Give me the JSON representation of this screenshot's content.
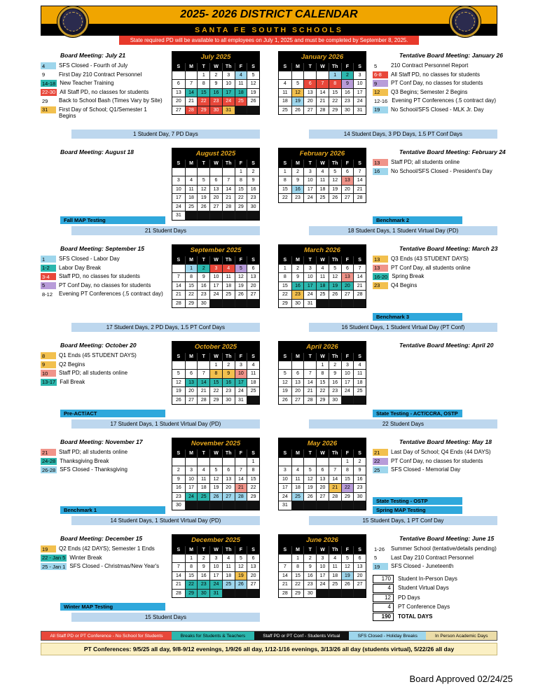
{
  "header": {
    "title": "2025- 2026 DISTRICT CALENDAR",
    "school": "SANTA FE SOUTH SCHOOLS",
    "notice": "State required PD will be available to all employees on July 1, 2025 and must be completed by September 8, 2025."
  },
  "day_headers": [
    "S",
    "M",
    "T",
    "W",
    "Th",
    "F",
    "S"
  ],
  "colors": {
    "gold": "#F0A500",
    "red": "#E8473A",
    "teal": "#2CB7AE",
    "blue": "#9ED6EC",
    "yellow": "#F2C04E",
    "pink": "#F0948A",
    "purple": "#B89CD9",
    "testing": "#2FA8DC",
    "summary": "#BDD7EE",
    "blackkey": "#121212",
    "tan": "#EBDCA8"
  },
  "months": [
    {
      "name": "July 2025",
      "board_meeting": "Board Meeting: July 21",
      "first_dow": 2,
      "num_days": 31,
      "events": [
        {
          "badge": "4",
          "color": "blue",
          "text": "SFS Closed - Fourth of July"
        },
        {
          "badge": "9",
          "color": "none",
          "text": "First Day 210 Contract Personnel"
        },
        {
          "badge": "14-18",
          "color": "teal",
          "text": "New Teacher Training"
        },
        {
          "badge": "22-30",
          "color": "red",
          "text": "All Staff PD, no classes for students"
        },
        {
          "badge": "29",
          "color": "none",
          "text": "Back to School Bash (Times Vary by Site)"
        },
        {
          "badge": "31",
          "color": "yellow",
          "text": "First Day of School; Q1/Semester 1 Begins"
        }
      ],
      "highlights": [
        {
          "color": "blue",
          "days": [
            4
          ]
        },
        {
          "color": "teal",
          "days": [
            14,
            15,
            16,
            17,
            18
          ]
        },
        {
          "color": "red",
          "days": [
            22,
            23,
            24,
            25,
            28,
            29,
            30
          ]
        },
        {
          "color": "yellow",
          "days": [
            31
          ]
        }
      ],
      "bars": [],
      "summary": "1 Student Day, 7 PD Days"
    },
    {
      "name": "August 2025",
      "board_meeting": "Board Meeting: August 18",
      "first_dow": 5,
      "num_days": 31,
      "events": [],
      "highlights": [],
      "bars": [
        "Fall MAP Testing"
      ],
      "summary": "21 Student Days"
    },
    {
      "name": "September 2025",
      "board_meeting": "Board Meeting: September 15",
      "first_dow": 1,
      "num_days": 30,
      "events": [
        {
          "badge": "1",
          "color": "blue",
          "text": "SFS Closed - Labor Day"
        },
        {
          "badge": "1-2",
          "color": "teal",
          "text": "Labor Day Break"
        },
        {
          "badge": "3-4",
          "color": "red",
          "text": "Staff PD, no classes for students"
        },
        {
          "badge": "5",
          "color": "purple",
          "text": "PT Conf Day, no classes for students"
        },
        {
          "badge": "8-12",
          "color": "none",
          "text": "Evening PT Conferences  (.5 contract day)"
        }
      ],
      "highlights": [
        {
          "color": "blue",
          "days": [
            1
          ]
        },
        {
          "color": "teal",
          "days": [
            2
          ]
        },
        {
          "color": "red",
          "days": [
            3,
            4
          ]
        },
        {
          "color": "purple",
          "days": [
            5
          ]
        }
      ],
      "bars": [],
      "summary": "17 Student Days, 2 PD Days, 1.5 PT Conf Days"
    },
    {
      "name": "October 2025",
      "board_meeting": "Board Meeting: October 20",
      "first_dow": 3,
      "num_days": 31,
      "events": [
        {
          "badge": "8",
          "color": "yellow",
          "text": "Q1 Ends (45 STUDENT DAYS)"
        },
        {
          "badge": "9",
          "color": "yellow",
          "text": "Q2 Begins"
        },
        {
          "badge": "10",
          "color": "pink",
          "text": "Staff PD; all students online"
        },
        {
          "badge": "13-17",
          "color": "teal",
          "text": "Fall Break"
        }
      ],
      "highlights": [
        {
          "color": "yellow",
          "days": [
            8,
            9
          ]
        },
        {
          "color": "pink",
          "days": [
            10
          ]
        },
        {
          "color": "teal",
          "days": [
            13,
            14,
            15,
            16,
            17
          ]
        }
      ],
      "bars": [
        "Pre-ACT/ACT"
      ],
      "summary": "17 Student Days, 1 Student Virtual Day (PD)"
    },
    {
      "name": "November 2025",
      "board_meeting": "Board Meeting: November 17",
      "first_dow": 6,
      "num_days": 30,
      "events": [
        {
          "badge": "21",
          "color": "pink",
          "text": "Staff PD; all students online"
        },
        {
          "badge": "24-28",
          "color": "teal",
          "text": "Thanksgiving Break"
        },
        {
          "badge": "26-28",
          "color": "blue",
          "text": "SFS Closed - Thanksgiving"
        }
      ],
      "highlights": [
        {
          "color": "pink",
          "days": [
            21
          ]
        },
        {
          "color": "teal",
          "days": [
            24,
            25
          ]
        },
        {
          "color": "blue",
          "days": [
            26,
            27,
            28
          ]
        }
      ],
      "bars": [
        "Benchmark 1"
      ],
      "summary": "14 Student Days, 1 Student Virtual Day (PD)"
    },
    {
      "name": "December 2025",
      "board_meeting": "Board Meeting: December 15",
      "first_dow": 1,
      "num_days": 31,
      "events": [
        {
          "badge": "19",
          "color": "yellow",
          "text": "Q2 Ends (42 DAYS); Semester 1 Ends"
        },
        {
          "badge": "22 - Jan 5",
          "color": "teal",
          "text": "Winter Break"
        },
        {
          "badge": "25 - Jan 1",
          "color": "blue",
          "text": "SFS Closed - Christmas/New Year's"
        }
      ],
      "highlights": [
        {
          "color": "yellow",
          "days": [
            19
          ]
        },
        {
          "color": "teal",
          "days": [
            22,
            23,
            24,
            29,
            30,
            31
          ]
        },
        {
          "color": "blue",
          "days": [
            25,
            26
          ]
        }
      ],
      "bars": [
        "Winter MAP Testing"
      ],
      "summary": "15 Student Days"
    },
    {
      "name": "January 2026",
      "board_meeting": "Tentative Board Meeting: January 26",
      "first_dow": 4,
      "num_days": 31,
      "events": [
        {
          "badge": "5",
          "color": "none",
          "text": "210 Contract Personnel Report"
        },
        {
          "badge": "6-8",
          "color": "red",
          "text": "All Staff PD, no classes for students"
        },
        {
          "badge": "9",
          "color": "purple",
          "text": "PT Conf Day, no classes for students"
        },
        {
          "badge": "12",
          "color": "yellow",
          "text": "Q3 Begins; Semester 2 Begins"
        },
        {
          "badge": "12-16",
          "color": "none",
          "text": "Evening PT Conferences  (.5 contract day)"
        },
        {
          "badge": "19",
          "color": "blue",
          "text": "No School/SFS Closed - MLK Jr. Day"
        }
      ],
      "highlights": [
        {
          "color": "blue",
          "days": [
            1,
            19
          ]
        },
        {
          "color": "teal",
          "days": [
            2
          ]
        },
        {
          "color": "red",
          "days": [
            6,
            7,
            8
          ]
        },
        {
          "color": "purple",
          "days": [
            9
          ]
        },
        {
          "color": "yellow",
          "days": [
            12
          ]
        }
      ],
      "bars": [],
      "summary": "14 Student Days, 3 PD Days, 1.5 PT Conf Days"
    },
    {
      "name": "February 2026",
      "board_meeting": "Tentative Board Meeting: February 24",
      "first_dow": 0,
      "num_days": 28,
      "events": [
        {
          "badge": "13",
          "color": "pink",
          "text": "Staff PD; all students online"
        },
        {
          "badge": "16",
          "color": "blue",
          "text": "No School/SFS Closed - President's Day"
        }
      ],
      "highlights": [
        {
          "color": "pink",
          "days": [
            13
          ]
        },
        {
          "color": "blue",
          "days": [
            16
          ]
        }
      ],
      "bars": [
        "Benchmark 2"
      ],
      "summary": "18 Student Days, 1 Student Virtual Day (PD)"
    },
    {
      "name": "March 2026",
      "board_meeting": "Tentative Board Meeting: March 23",
      "first_dow": 0,
      "num_days": 31,
      "events": [
        {
          "badge": "13",
          "color": "yellow",
          "text": "Q3 Ends (43 STUDENT DAYS)"
        },
        {
          "badge": "13",
          "color": "pink",
          "text": "PT Conf Day, all students online"
        },
        {
          "badge": "16-20",
          "color": "teal",
          "text": "Spring Break"
        },
        {
          "badge": "23",
          "color": "yellow",
          "text": "Q4 Begins"
        }
      ],
      "highlights": [
        {
          "color": "pink",
          "days": [
            13
          ]
        },
        {
          "color": "teal",
          "days": [
            16,
            17,
            18,
            19,
            20
          ]
        },
        {
          "color": "yellow",
          "days": [
            23
          ]
        }
      ],
      "bars": [
        "Benchmark 3"
      ],
      "summary": "16 Student Days, 1 Student Virtual Day (PT Conf)"
    },
    {
      "name": "April 2026",
      "board_meeting": "Tentative Board Meeting: April 20",
      "first_dow": 3,
      "num_days": 30,
      "events": [],
      "highlights": [],
      "bars": [
        "State Testing - ACT/CCRA, OSTP"
      ],
      "summary": "22 Student Days"
    },
    {
      "name": "May 2026",
      "board_meeting": "Tentative Board Meeting: May 18",
      "first_dow": 5,
      "num_days": 31,
      "events": [
        {
          "badge": "21",
          "color": "yellow",
          "text": "Last Day of School; Q4 Ends (44 DAYS)"
        },
        {
          "badge": "22",
          "color": "purple",
          "text": "PT Conf Day, no classes for students"
        },
        {
          "badge": "25",
          "color": "blue",
          "text": "SFS Closed - Memorial Day"
        }
      ],
      "highlights": [
        {
          "color": "yellow",
          "days": [
            21
          ]
        },
        {
          "color": "purple",
          "days": [
            22
          ]
        },
        {
          "color": "blue",
          "days": [
            25
          ]
        }
      ],
      "bars": [
        "State Testing - OSTP",
        "Spring MAP Testing"
      ],
      "summary": "15 Student Days, 1 PT Conf Day"
    },
    {
      "name": "June 2026",
      "board_meeting": "Tentative Board Meeting: June 15",
      "first_dow": 1,
      "num_days": 30,
      "events": [
        {
          "badge": "1-26",
          "color": "none",
          "text": "Summer School (tentative/details pending)"
        },
        {
          "badge": "5",
          "color": "none",
          "text": "Last Day 210 Contract Personnel"
        },
        {
          "badge": "19",
          "color": "blue",
          "text": "SFS Closed - Juneteenth"
        }
      ],
      "highlights": [
        {
          "color": "blue",
          "days": [
            19
          ]
        }
      ],
      "bars": [],
      "totals": [
        {
          "num": "170",
          "label": "Student In-Person Days"
        },
        {
          "num": "4",
          "label": "Student Virtual Days"
        },
        {
          "num": "12",
          "label": "PD Days"
        },
        {
          "num": "4",
          "label": "PT Conference Days"
        },
        {
          "num": "190",
          "label": "TOTAL DAYS"
        }
      ]
    }
  ],
  "legend": [
    {
      "color": "red",
      "text": "All Staff PD or PT Conference - No School for Students",
      "text_color": "#ffffff"
    },
    {
      "color": "teal",
      "text": "Breaks for Students & Teachers",
      "text_color": "#000000"
    },
    {
      "color": "blackkey",
      "text": "Staff PD or PT Conf - Students Virtual",
      "text_color": "#ffffff"
    },
    {
      "color": "blue",
      "text": "SFS Closed - Holiday Breaks",
      "text_color": "#000000"
    },
    {
      "color": "tan",
      "text": "In Person Academic Days",
      "text_color": "#000000"
    }
  ],
  "pt_note": "PT Conferences: 9/5/25 all day, 9/8-9/12 evenings, 1/9/26 all day, 1/12-1/16 evenings, 3/13/26 all day (students virtual), 5/22/26 all day",
  "approval": "Board Approved 02/24/25"
}
